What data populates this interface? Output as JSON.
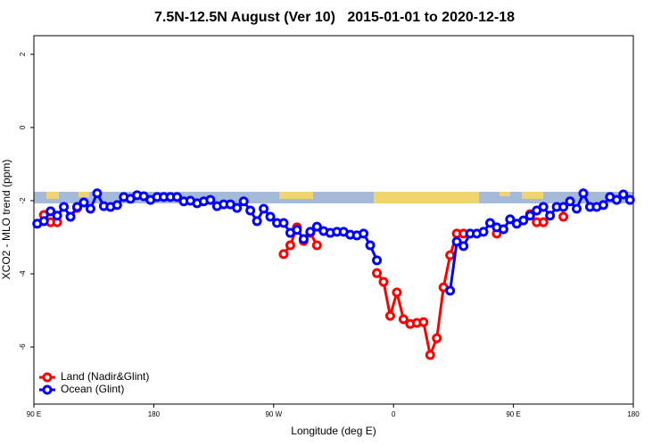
{
  "chart_data": {
    "type": "line",
    "title": "7.5N-12.5N August (Ver 10)   2015-01-01 to 2020-12-18",
    "x_label": "Longitude (deg E)",
    "y_label": "XCO2 - MLO trend (ppm)",
    "xlim": [
      90,
      540
    ],
    "ylim": [
      -7.56,
      2.51
    ],
    "xticks": [
      {
        "value": 90,
        "label": "90 E"
      },
      180,
      {
        "value": 270,
        "label": "90 W"
      },
      {
        "value": 360,
        "label": "0"
      },
      {
        "value": 450,
        "label": "90 E"
      },
      {
        "value": 540,
        "label": "180"
      }
    ],
    "yticks": [
      2,
      0,
      -2,
      -4,
      -6
    ],
    "legend": "bottom-left",
    "series": [
      {
        "name": "Land (Nadir&Glint)",
        "color": "#ff0000",
        "x": [
          97.5,
          102.5,
          107.5,
          112.5,
          117.5,
          122.5,
          127.5,
          277.5,
          282.5,
          287.5,
          292.5,
          297.5,
          302.5,
          307.5,
          347.5,
          352.5,
          357.5,
          362.5,
          367.5,
          372.5,
          377.5,
          382.5,
          387.5,
          392.5,
          397.5,
          402.5,
          407.5,
          412.5,
          417.5,
          437.5,
          442.5,
          462.5,
          467.5,
          472.5,
          477.5,
          487.5
        ],
        "values": [
          -2.39,
          -2.59,
          -2.59,
          null,
          -2.44,
          -2.2,
          null,
          -3.46,
          -3.22,
          -2.73,
          -3.1,
          -2.88,
          -3.22,
          null,
          -3.98,
          -4.22,
          -5.15,
          -4.51,
          -5.24,
          -5.37,
          -5.34,
          -5.32,
          -6.22,
          -5.76,
          -4.37,
          -3.49,
          -2.9,
          -2.9,
          null,
          -2.9,
          null,
          -2.37,
          -2.59,
          -2.59,
          null,
          -2.44
        ]
      },
      {
        "name": "Ocean (Glint)",
        "color": "#0000ff",
        "x": [
          92.5,
          97.5,
          102.5,
          107.5,
          112.5,
          117.5,
          122.5,
          127.5,
          132.5,
          137.5,
          142.5,
          147.5,
          152.5,
          157.5,
          162.5,
          167.5,
          172.5,
          177.5,
          182.5,
          187.5,
          192.5,
          197.5,
          202.5,
          207.5,
          212.5,
          217.5,
          222.5,
          227.5,
          232.5,
          237.5,
          242.5,
          247.5,
          252.5,
          257.5,
          262.5,
          267.5,
          272.5,
          277.5,
          282.5,
          287.5,
          292.5,
          297.5,
          302.5,
          307.5,
          312.5,
          317.5,
          322.5,
          327.5,
          332.5,
          337.5,
          342.5,
          347.5,
          352.5,
          402.5,
          407.5,
          412.5,
          417.5,
          422.5,
          427.5,
          432.5,
          437.5,
          442.5,
          447.5,
          452.5,
          457.5,
          462.5,
          467.5,
          472.5,
          477.5,
          482.5,
          487.5,
          492.5,
          497.5,
          502.5,
          507.5,
          512.5,
          517.5,
          522.5,
          527.5,
          532.5,
          537.5
        ],
        "values": [
          -2.63,
          -2.56,
          -2.29,
          -2.41,
          -2.17,
          -2.44,
          -2.17,
          -2.05,
          -2.22,
          -1.8,
          -2.15,
          -2.17,
          -2.12,
          -1.9,
          -1.95,
          -1.85,
          -1.88,
          -1.98,
          -1.9,
          -1.9,
          -1.9,
          -1.9,
          -2.02,
          -2.0,
          -2.07,
          -2.02,
          -1.98,
          -2.15,
          -2.1,
          -2.1,
          -2.2,
          -2.02,
          -2.27,
          -2.56,
          -2.22,
          -2.44,
          -2.61,
          -2.61,
          -2.88,
          -2.8,
          -3.05,
          -2.85,
          -2.71,
          -2.83,
          -2.88,
          -2.85,
          -2.85,
          -2.93,
          -2.95,
          -2.9,
          -3.22,
          -3.63,
          null,
          -4.46,
          -3.12,
          -3.24,
          -2.9,
          -2.9,
          -2.85,
          -2.61,
          -2.73,
          -2.78,
          -2.51,
          -2.63,
          -2.54,
          -2.41,
          -2.27,
          -2.17,
          -2.41,
          -2.17,
          -2.17,
          -2.02,
          -2.22,
          -1.8,
          -2.17,
          -2.17,
          -2.12,
          -1.9,
          -1.98,
          -1.83,
          -1.98
        ]
      }
    ]
  }
}
